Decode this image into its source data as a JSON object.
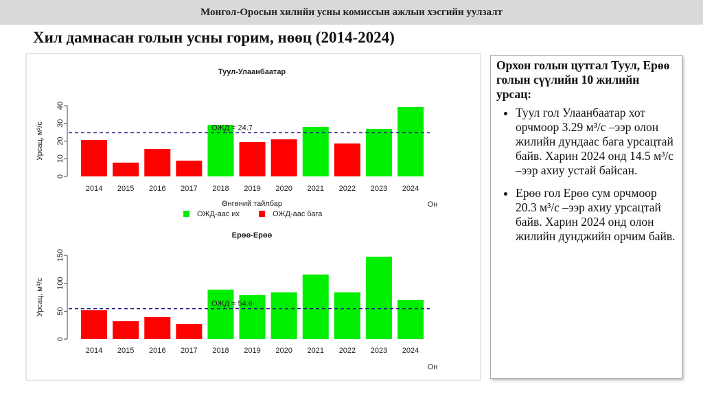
{
  "header": "Монгол-Оросын хилийн усны комиссын ажлын хэсгийн уулзалт",
  "title": "Хил дамнасан голын усны горим, нөөц (2014-2024)",
  "notes": {
    "heading": "Орхон голын цутгал Туул, Ерөө голын сүүлийн 10 жилийн урсац:",
    "bullets": [
      "Туул гол Улаанбаатар хот орчмоор 3.29 м³/с –ээр олон жилийн дундаас бага урсацтай байв. Харин 2024 онд 14.5 м³/с –ээр ахиу устай байсан.",
      "Ерөө гол Ерөө сум орчмоор 20.3 м³/с –ээр ахиу урсацтай байв. Харин 2024 онд олон жилийн дунджийн орчим байв."
    ]
  },
  "chart_data": [
    {
      "type": "bar",
      "title": "Туул-Улаанбаатар",
      "ylabel": "Урсац, м³/с",
      "xlabel": "Он",
      "categories": [
        "2014",
        "2015",
        "2016",
        "2017",
        "2018",
        "2019",
        "2020",
        "2021",
        "2022",
        "2023",
        "2024"
      ],
      "values": [
        20.6,
        7.8,
        15.5,
        8.9,
        29.1,
        19.4,
        21.0,
        28.0,
        18.6,
        26.8,
        39.2
      ],
      "colors": [
        "#ff0000",
        "#ff0000",
        "#ff0000",
        "#ff0000",
        "#00ee00",
        "#ff0000",
        "#ff0000",
        "#00ee00",
        "#ff0000",
        "#00ee00",
        "#00ee00"
      ],
      "ylim": [
        0,
        40
      ],
      "yticks": [
        0,
        10,
        20,
        30,
        40
      ],
      "reference_line": {
        "value": 24.7,
        "label": "ОЖД = 24.7",
        "color": "#1a1a80"
      },
      "legend": {
        "title": "Өнгөний тайлбар",
        "items": [
          {
            "label": "ОЖД-аас их",
            "color": "#00ee00"
          },
          {
            "label": "ОЖД-аас бага",
            "color": "#ff0000"
          }
        ]
      }
    },
    {
      "type": "bar",
      "title": "Ерөө-Ерөө",
      "ylabel": "Урсац, м³/с",
      "xlabel": "Он",
      "categories": [
        "2014",
        "2015",
        "2016",
        "2017",
        "2018",
        "2019",
        "2020",
        "2021",
        "2022",
        "2023",
        "2024"
      ],
      "values": [
        51.6,
        32.0,
        39.4,
        27.0,
        88.6,
        78.7,
        83.6,
        115.6,
        83.6,
        147.6,
        70.0
      ],
      "colors": [
        "#ff0000",
        "#ff0000",
        "#ff0000",
        "#ff0000",
        "#00ee00",
        "#00ee00",
        "#00ee00",
        "#00ee00",
        "#00ee00",
        "#00ee00",
        "#00ee00"
      ],
      "ylim": [
        0,
        150
      ],
      "yticks": [
        0,
        50,
        100,
        150
      ],
      "reference_line": {
        "value": 54.6,
        "label": "ОЖД = 54.6",
        "color": "#1a1a80"
      }
    }
  ]
}
